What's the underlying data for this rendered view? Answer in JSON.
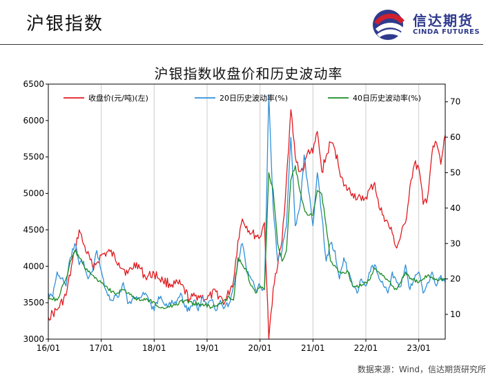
{
  "header": {
    "title": "沪银指数"
  },
  "logo": {
    "cn": "信达期货",
    "en": "CINDA FUTURES",
    "colors": {
      "primary": "#2f3a8c",
      "accent": "#d0202e"
    }
  },
  "source": "数据来源：Wind，信达期货研究所",
  "chart_data": {
    "type": "line",
    "title": "沪银指数收盘价和历史波动率",
    "grid": "vertical",
    "legend_position": "top",
    "x_tick_labels": [
      "16/01",
      "17/01",
      "18/01",
      "19/01",
      "20/01",
      "21/01",
      "22/01",
      "23/01"
    ],
    "x_range": [
      "2016-01",
      "2023-07"
    ],
    "left_axis": {
      "ylim": [
        3000,
        6500
      ],
      "ticks": [
        3000,
        3500,
        4000,
        4500,
        5000,
        5500,
        6000,
        6500
      ]
    },
    "right_axis": {
      "ylim": [
        3.0,
        75.0
      ],
      "ticks": [
        10,
        20,
        30,
        40,
        50,
        60,
        70
      ]
    },
    "series": [
      {
        "name": "收盘价(元/吨)(左)",
        "axis": "left",
        "color": "#e0191e",
        "x": [
          "2016-01",
          "2016-03",
          "2016-05",
          "2016-07",
          "2016-08",
          "2016-09",
          "2016-11",
          "2016-12",
          "2017-01",
          "2017-03",
          "2017-05",
          "2017-07",
          "2017-09",
          "2017-11",
          "2018-01",
          "2018-03",
          "2018-05",
          "2018-07",
          "2018-09",
          "2018-11",
          "2019-01",
          "2019-03",
          "2019-05",
          "2019-07",
          "2019-08",
          "2019-09",
          "2019-11",
          "2020-01",
          "2020-02",
          "2020-03",
          "2020-04",
          "2020-05",
          "2020-06",
          "2020-07",
          "2020-08",
          "2020-09",
          "2020-10",
          "2020-11",
          "2020-12",
          "2021-01",
          "2021-02",
          "2021-03",
          "2021-05",
          "2021-06",
          "2021-08",
          "2021-10",
          "2021-12",
          "2022-01",
          "2022-03",
          "2022-04",
          "2022-05",
          "2022-07",
          "2022-08",
          "2022-10",
          "2022-11",
          "2022-12",
          "2023-01",
          "2023-02",
          "2023-03",
          "2023-04",
          "2023-05",
          "2023-06",
          "2023-07"
        ],
        "values": [
          3300,
          3400,
          3600,
          4200,
          4500,
          4300,
          4000,
          4050,
          4150,
          4200,
          4050,
          3900,
          4050,
          3850,
          3900,
          3800,
          3750,
          3750,
          3550,
          3600,
          3550,
          3650,
          3500,
          3800,
          4350,
          4650,
          4450,
          4400,
          4600,
          3000,
          3700,
          4000,
          4350,
          5200,
          6150,
          5500,
          5300,
          5350,
          5600,
          5550,
          5850,
          5300,
          5700,
          5600,
          5100,
          5000,
          4900,
          4950,
          5150,
          4800,
          4700,
          4450,
          4250,
          4600,
          5100,
          5400,
          5350,
          4850,
          4950,
          5550,
          5700,
          5400,
          5800
        ]
      },
      {
        "name": "20日历史波动率(%)",
        "axis": "right",
        "color": "#2e8fd8",
        "x": [
          "2016-01",
          "2016-02",
          "2016-03",
          "2016-05",
          "2016-06",
          "2016-07",
          "2016-08",
          "2016-09",
          "2016-10",
          "2016-11",
          "2016-12",
          "2017-02",
          "2017-03",
          "2017-05",
          "2017-06",
          "2017-07",
          "2017-09",
          "2017-11",
          "2018-01",
          "2018-02",
          "2018-04",
          "2018-05",
          "2018-06",
          "2018-07",
          "2018-08",
          "2018-09",
          "2018-10",
          "2018-11",
          "2018-12",
          "2019-01",
          "2019-02",
          "2019-03",
          "2019-04",
          "2019-05",
          "2019-06",
          "2019-07",
          "2019-08",
          "2019-09",
          "2019-10",
          "2019-11",
          "2019-12",
          "2020-01",
          "2020-02",
          "2020-03",
          "2020-04",
          "2020-05",
          "2020-06",
          "2020-07",
          "2020-08",
          "2020-09",
          "2020-10",
          "2020-11",
          "2020-12",
          "2021-01",
          "2021-02",
          "2021-03",
          "2021-04",
          "2021-05",
          "2021-06",
          "2021-07",
          "2021-08",
          "2021-09",
          "2021-10",
          "2021-11",
          "2021-12",
          "2022-01",
          "2022-02",
          "2022-03",
          "2022-04",
          "2022-05",
          "2022-06",
          "2022-07",
          "2022-08",
          "2022-09",
          "2022-10",
          "2022-11",
          "2022-12",
          "2023-01",
          "2023-02",
          "2023-03",
          "2023-04",
          "2023-05",
          "2023-06",
          "2023-07"
        ],
        "values": [
          16,
          15,
          22,
          18,
          26,
          30,
          24,
          25,
          20,
          22,
          28,
          17,
          14,
          15,
          19,
          13,
          15,
          16,
          11,
          15,
          12,
          14,
          13,
          16,
          12,
          11,
          14,
          11,
          15,
          12,
          14,
          11,
          14,
          12,
          13,
          18,
          25,
          30,
          22,
          20,
          17,
          18,
          17,
          72,
          40,
          25,
          28,
          35,
          60,
          35,
          40,
          55,
          45,
          35,
          50,
          38,
          25,
          30,
          28,
          20,
          26,
          22,
          18,
          16,
          20,
          18,
          22,
          24,
          20,
          18,
          16,
          22,
          19,
          18,
          24,
          17,
          20,
          22,
          16,
          19,
          22,
          18,
          21,
          19
        ]
      },
      {
        "name": "40日历史波动率(%)",
        "axis": "right",
        "color": "#1a8a22",
        "x": [
          "2016-01",
          "2016-03",
          "2016-05",
          "2016-06",
          "2016-07",
          "2016-08",
          "2016-09",
          "2016-10",
          "2016-12",
          "2017-02",
          "2017-04",
          "2017-06",
          "2017-08",
          "2017-10",
          "2017-12",
          "2018-02",
          "2018-04",
          "2018-06",
          "2018-08",
          "2018-10",
          "2018-12",
          "2019-02",
          "2019-04",
          "2019-06",
          "2019-07",
          "2019-08",
          "2019-09",
          "2019-10",
          "2019-11",
          "2019-12",
          "2020-01",
          "2020-02",
          "2020-03",
          "2020-04",
          "2020-05",
          "2020-06",
          "2020-07",
          "2020-08",
          "2020-09",
          "2020-10",
          "2020-11",
          "2020-12",
          "2021-01",
          "2021-02",
          "2021-03",
          "2021-04",
          "2021-05",
          "2021-07",
          "2021-09",
          "2021-10",
          "2021-12",
          "2022-02",
          "2022-03",
          "2022-05",
          "2022-07",
          "2022-08",
          "2022-10",
          "2022-11",
          "2023-01",
          "2023-03",
          "2023-05",
          "2023-07"
        ],
        "values": [
          15,
          14,
          20,
          25,
          28,
          26,
          24,
          22,
          20,
          18,
          16,
          17,
          15,
          14,
          14,
          12,
          12,
          13,
          14,
          13,
          13,
          12,
          13,
          15,
          14,
          26,
          24,
          22,
          18,
          16,
          18,
          17,
          50,
          45,
          30,
          25,
          28,
          48,
          52,
          45,
          40,
          38,
          38,
          45,
          44,
          35,
          25,
          22,
          22,
          18,
          18,
          20,
          23,
          21,
          18,
          17,
          22,
          20,
          19,
          21,
          20,
          20
        ]
      }
    ]
  }
}
